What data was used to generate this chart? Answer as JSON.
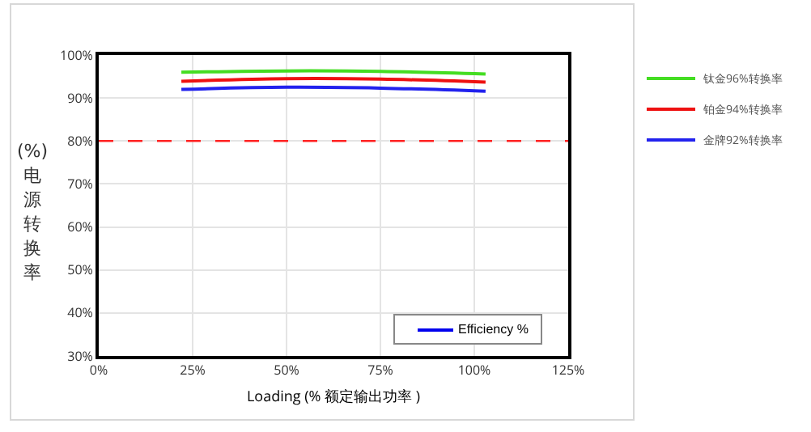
{
  "chart_data": {
    "type": "line",
    "xlabel": "Loading (% 额定输出功率 )",
    "ylabel": "(%)电源转换率",
    "x": [
      22,
      50,
      75,
      103
    ],
    "series": [
      {
        "name": "钛金96%转换率",
        "color": "#44dd22",
        "values": [
          96,
          96.3,
          96.2,
          95.6
        ]
      },
      {
        "name": "铂金94%转换率",
        "color": "#ee1111",
        "values": [
          93.9,
          94.5,
          94.4,
          93.7
        ]
      },
      {
        "name": "金牌92%转换率",
        "color": "#2222ee",
        "values": [
          92,
          92.5,
          92.3,
          91.6
        ]
      }
    ],
    "xlim": [
      0,
      125
    ],
    "xticks": [
      {
        "value": 0,
        "label": "0%"
      },
      {
        "value": 25,
        "label": "25%"
      },
      {
        "value": 50,
        "label": "50%"
      },
      {
        "value": 75,
        "label": "75%"
      },
      {
        "value": 100,
        "label": "100%"
      },
      {
        "value": 125,
        "label": "125%"
      }
    ],
    "ylim": [
      30,
      100
    ],
    "yticks": [
      {
        "value": 30,
        "label": "30%"
      },
      {
        "value": 40,
        "label": "40%"
      },
      {
        "value": 50,
        "label": "50%"
      },
      {
        "value": 60,
        "label": "60%"
      },
      {
        "value": 70,
        "label": "70%"
      },
      {
        "value": 80,
        "label": "80%"
      },
      {
        "value": 90,
        "label": "90%"
      },
      {
        "value": 100,
        "label": "100%"
      }
    ],
    "ref_lines": [
      {
        "axis": "y",
        "value": 80,
        "color": "#ff2222",
        "line_style": "dashed"
      }
    ],
    "annotations": [
      "Efficiency %"
    ],
    "grid": true,
    "legend": "right",
    "line_style": "solid",
    "marker": "none"
  }
}
